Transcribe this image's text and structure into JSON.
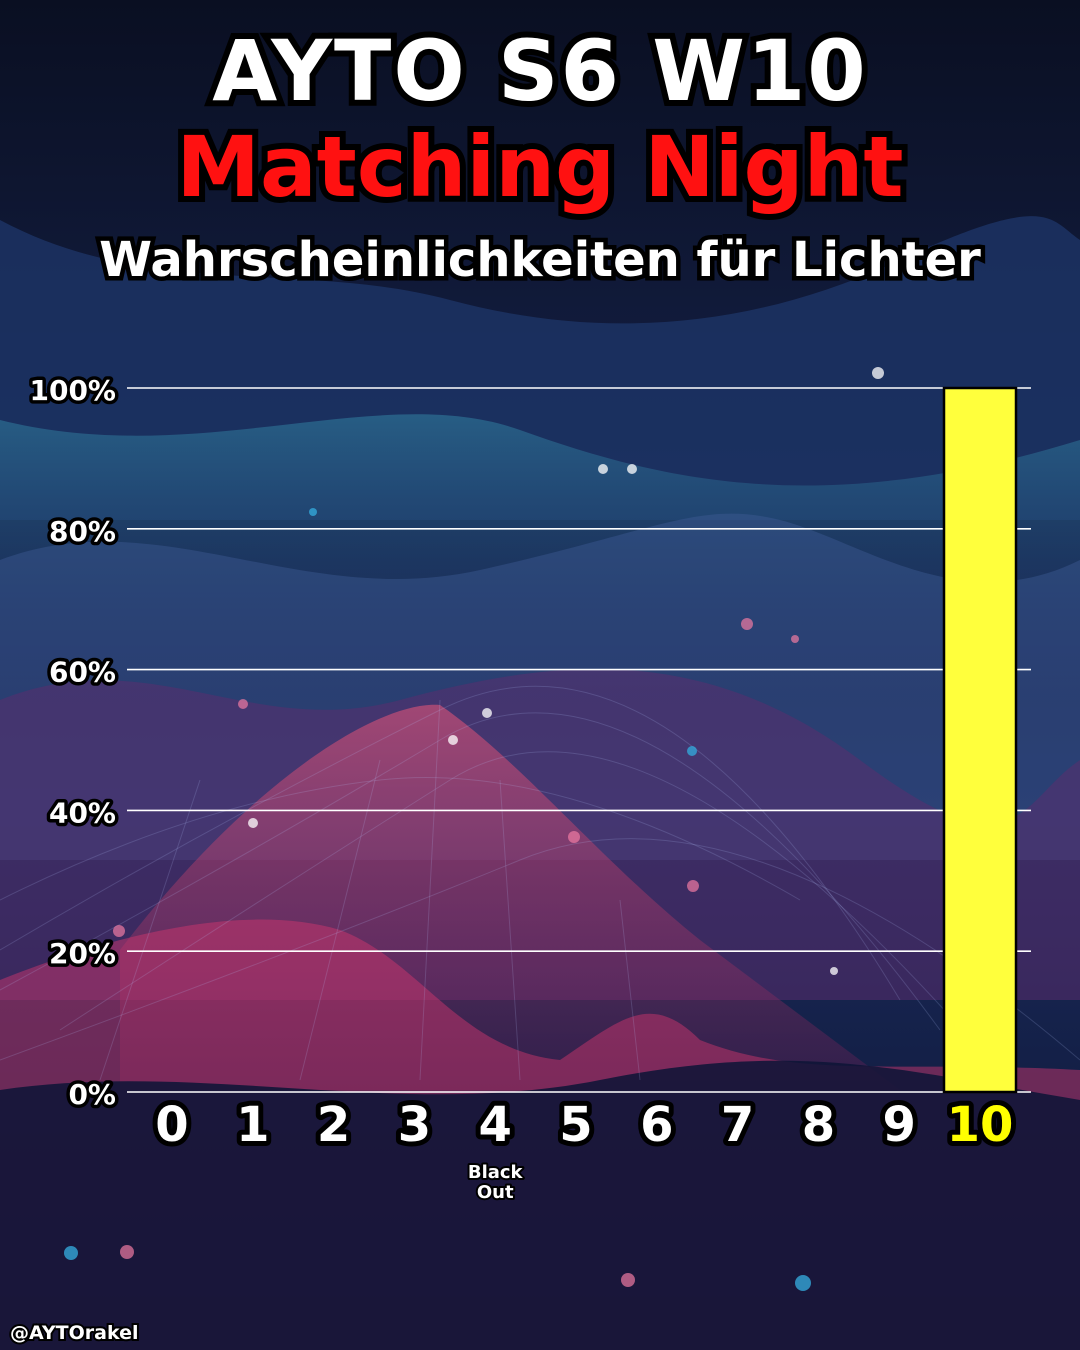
{
  "header": {
    "title": "AYTO S6  W10",
    "subtitle": "Matching Night",
    "caption": "Wahrscheinlichkeiten für Lichter"
  },
  "footer": {
    "credit": "@AYTOrakel"
  },
  "colors": {
    "title": "#ffffff",
    "subtitle": "#ff1111",
    "bar": "#ffff3c",
    "highlight_label": "#ffff00",
    "grid": "#ffffff"
  },
  "chart_data": {
    "type": "bar",
    "categories": [
      "0",
      "1",
      "2",
      "3",
      "4",
      "5",
      "6",
      "7",
      "8",
      "9",
      "10"
    ],
    "category_notes": {
      "4": [
        "Black",
        "Out"
      ]
    },
    "values": [
      0,
      0,
      0,
      0,
      0,
      0,
      0,
      0,
      0,
      0,
      100
    ],
    "highlight_category": "10",
    "y_ticks": [
      "0%",
      "20%",
      "40%",
      "60%",
      "80%",
      "100%"
    ],
    "ylim": [
      0,
      100
    ],
    "grid": true
  }
}
